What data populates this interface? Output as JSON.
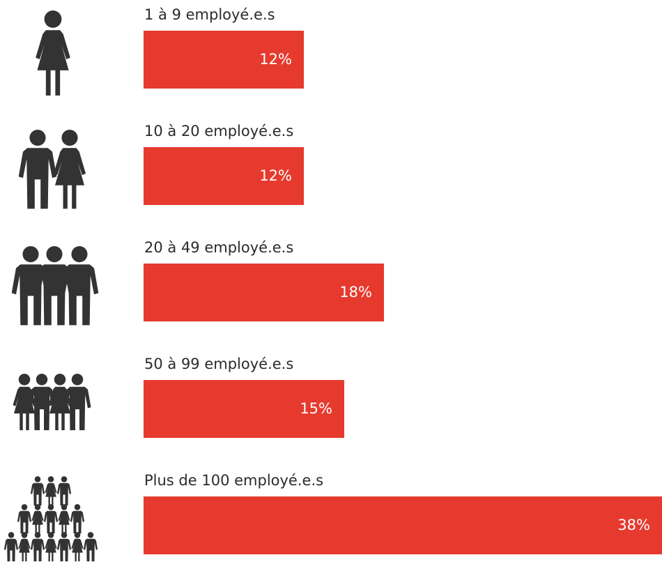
{
  "colors": {
    "bar": "#e63a2e",
    "icon": "#333333",
    "text": "#2b2b2b"
  },
  "chart_data": {
    "type": "bar",
    "orientation": "horizontal",
    "categories": [
      "1 à 9 employé.e.s",
      "10 à 20 employé.e.s",
      "20 à 49 employé.e.s",
      "50 à 99 employé.e.s",
      "Plus de 100 employé.e.s"
    ],
    "values": [
      12,
      12,
      18,
      15,
      38
    ],
    "value_labels": [
      "12%",
      "12%",
      "18%",
      "15%",
      "38%"
    ],
    "icons": [
      "single-person-icon",
      "two-people-icon",
      "three-people-icon",
      "four-people-icon",
      "crowd-icon"
    ],
    "xlim": [
      0,
      38
    ],
    "grid": false,
    "legend": "none"
  }
}
